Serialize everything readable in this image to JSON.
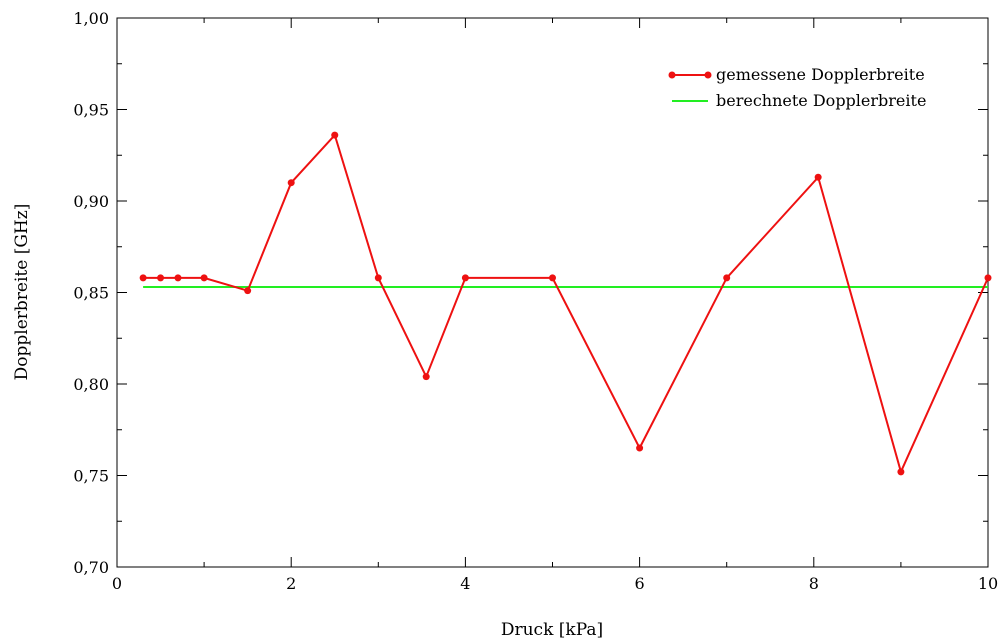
{
  "chart_data": {
    "type": "line",
    "xlabel": "Druck [kPa]",
    "ylabel": "Dopplerbreite [GHz]",
    "xlim": [
      0,
      10
    ],
    "ylim": [
      0.7,
      1.0
    ],
    "x_ticks": [
      0,
      2,
      4,
      6,
      8,
      10
    ],
    "x_tick_labels": [
      "0",
      "2",
      "4",
      "6",
      "8",
      "10"
    ],
    "y_ticks": [
      0.7,
      0.75,
      0.8,
      0.85,
      0.9,
      0.95,
      1.0
    ],
    "y_tick_labels": [
      "0,70",
      "0,75",
      "0,80",
      "0,85",
      "0,90",
      "0,95",
      "1,00"
    ],
    "grid": false,
    "legend_position": "top-right",
    "series": [
      {
        "name": "gemessene Dopplerbreite",
        "color": "#ee1111",
        "marker": "circle",
        "x": [
          0.3,
          0.5,
          0.7,
          1.0,
          1.5,
          2.0,
          2.5,
          3.0,
          3.55,
          4.0,
          5.0,
          6.0,
          7.0,
          8.05,
          9.0,
          10.0
        ],
        "y": [
          0.858,
          0.858,
          0.858,
          0.858,
          0.851,
          0.91,
          0.936,
          0.858,
          0.804,
          0.858,
          0.858,
          0.765,
          0.858,
          0.913,
          0.752,
          0.858
        ]
      },
      {
        "name": "berechnete Dopplerbreite",
        "color": "#22ee22",
        "marker": "none",
        "x": [
          0.3,
          10.0
        ],
        "y": [
          0.853,
          0.853
        ]
      }
    ]
  }
}
